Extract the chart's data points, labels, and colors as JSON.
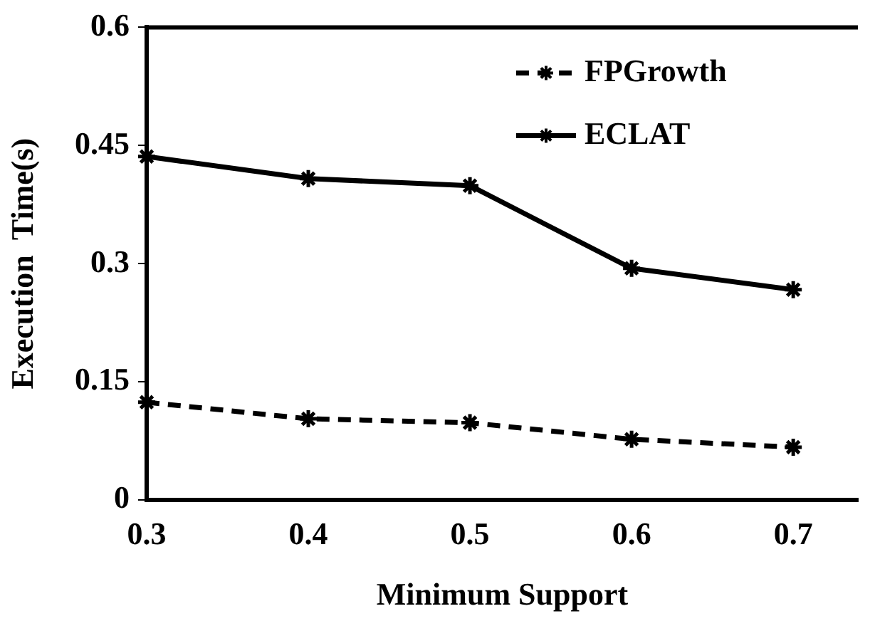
{
  "chart_data": {
    "type": "line",
    "xlabel": "Minimum Support",
    "ylabel": "Execution  Time(s)",
    "x": [
      0.3,
      0.4,
      0.5,
      0.6,
      0.7
    ],
    "series": [
      {
        "name": "FPGrowth",
        "color": "#000000",
        "line_style": "dashed",
        "values": [
          0.124,
          0.103,
          0.098,
          0.077,
          0.067
        ]
      },
      {
        "name": "ECLAT",
        "color": "#000000",
        "line_style": "solid",
        "values": [
          0.436,
          0.408,
          0.399,
          0.294,
          0.267
        ]
      }
    ],
    "xlim": [
      0.3,
      0.74
    ],
    "xticks": [
      0.3,
      0.4,
      0.5,
      0.6,
      0.7
    ],
    "ylim": [
      0,
      0.6
    ],
    "yticks": [
      0,
      0.15,
      0.3,
      0.45,
      0.6
    ],
    "grid": false,
    "legend": "top right",
    "marker": "cross"
  }
}
